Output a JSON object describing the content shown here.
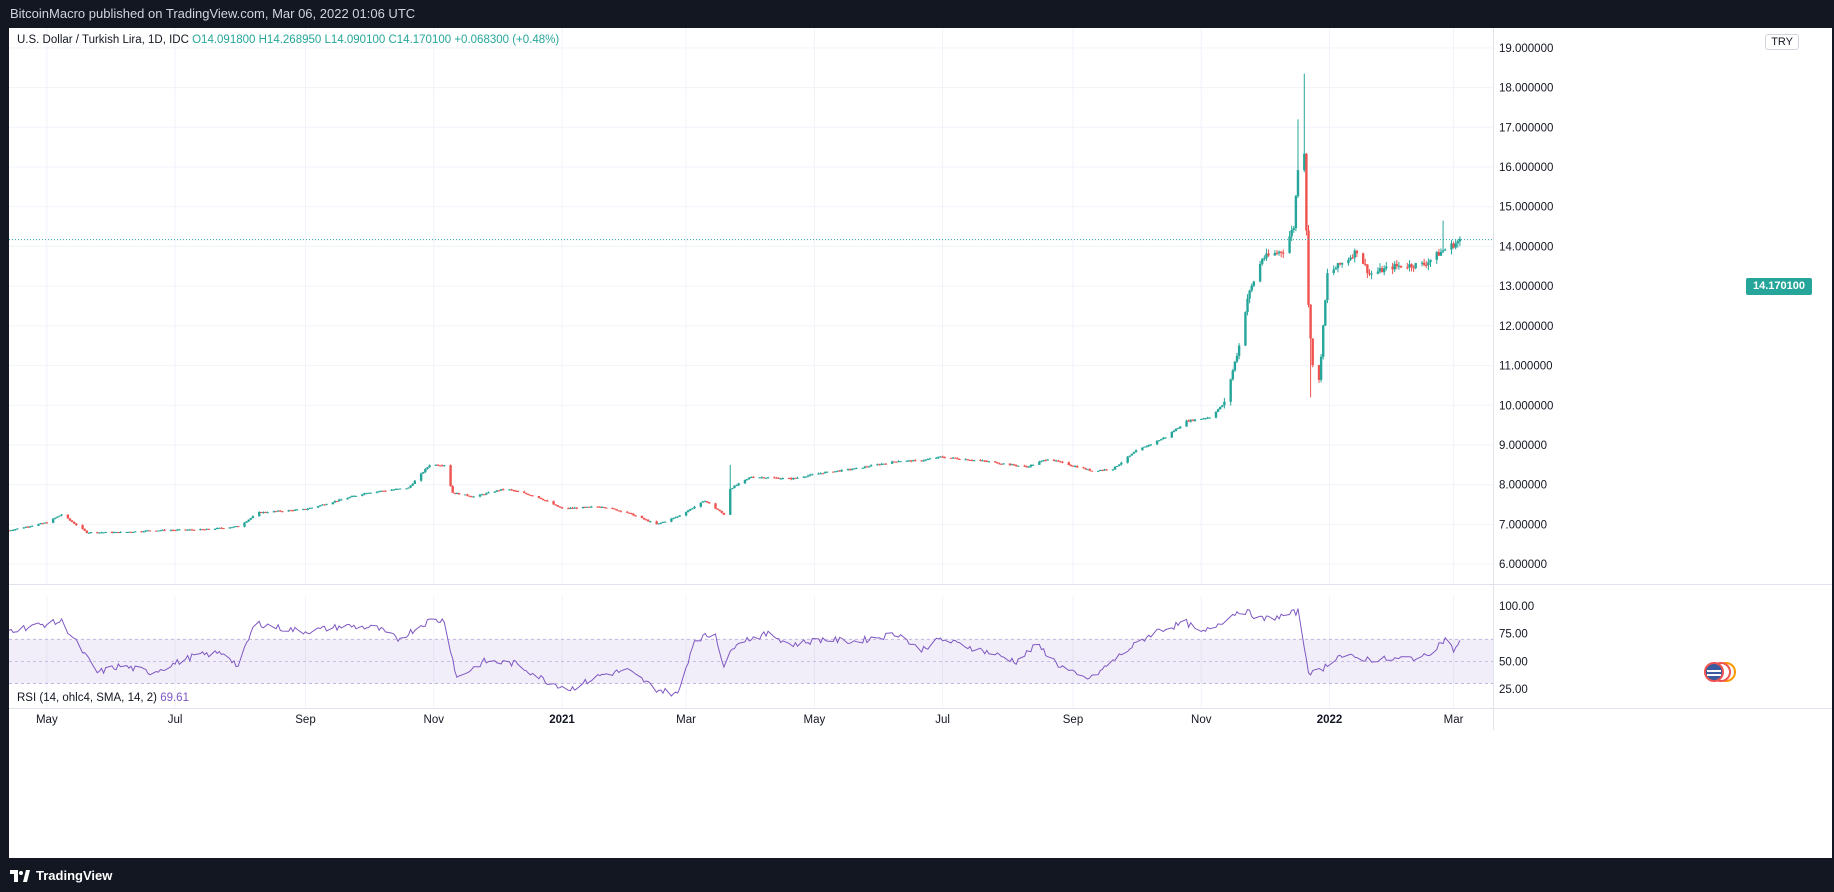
{
  "header": {
    "published": "BitcoinMacro published on TradingView.com, Mar 06, 2022 01:06 UTC"
  },
  "footer": {
    "brand": "TradingView"
  },
  "symbol": {
    "name": "U.S. Dollar / Turkish Lira, 1D, IDC",
    "open": "O14.091800",
    "high": "H14.268950",
    "low": "L14.090100",
    "close": "C14.170100",
    "change": "+0.068300 (+0.48%)",
    "currency": "TRY",
    "last_price_label": "14.170100"
  },
  "rsi": {
    "label": "RSI (14, ohlc4, SMA, 14, 2)",
    "value": "69.61"
  },
  "colors": {
    "up": "#26a69a",
    "down": "#ef5350",
    "rsi_line": "#7e57c2",
    "rsi_band": "#7e57c2"
  },
  "chart_data": [
    {
      "type": "candlestick",
      "title": "U.S. Dollar / Turkish Lira, 1D, IDC",
      "x_ticks": [
        "May",
        "Jul",
        "Sep",
        "Nov",
        "2021",
        "Mar",
        "May",
        "Jul",
        "Sep",
        "Nov",
        "2022",
        "Mar"
      ],
      "y_ticks": [
        "6.000000",
        "7.000000",
        "8.000000",
        "9.000000",
        "10.000000",
        "11.000000",
        "12.000000",
        "13.000000",
        "14.000000",
        "15.000000",
        "16.000000",
        "17.000000",
        "18.000000",
        "19.000000"
      ],
      "ylim": [
        5.5,
        19.5
      ],
      "last_price": 14.1701,
      "x_range": [
        "2020-04-13",
        "2022-03-05"
      ],
      "keypoints": [
        [
          "2020-04-13",
          6.85
        ],
        [
          "2020-05-01",
          7.05
        ],
        [
          "2020-05-08",
          7.25
        ],
        [
          "2020-05-20",
          6.8
        ],
        [
          "2020-06-05",
          6.8
        ],
        [
          "2020-06-20",
          6.85
        ],
        [
          "2020-07-15",
          6.87
        ],
        [
          "2020-07-31",
          6.95
        ],
        [
          "2020-08-10",
          7.3
        ],
        [
          "2020-09-01",
          7.38
        ],
        [
          "2020-09-30",
          7.8
        ],
        [
          "2020-10-20",
          7.92
        ],
        [
          "2020-10-30",
          8.5
        ],
        [
          "2020-11-06",
          8.5
        ],
        [
          "2020-11-10",
          7.8
        ],
        [
          "2020-11-20",
          7.7
        ],
        [
          "2020-12-05",
          7.9
        ],
        [
          "2020-12-20",
          7.7
        ],
        [
          "2021-01-01",
          7.4
        ],
        [
          "2021-01-20",
          7.45
        ],
        [
          "2021-02-01",
          7.3
        ],
        [
          "2021-02-15",
          7.0
        ],
        [
          "2021-02-25",
          7.2
        ],
        [
          "2021-03-10",
          7.6
        ],
        [
          "2021-03-19",
          7.25
        ],
        [
          "2021-03-22",
          7.9
        ],
        [
          "2021-04-01",
          8.2
        ],
        [
          "2021-04-20",
          8.15
        ],
        [
          "2021-05-05",
          8.3
        ],
        [
          "2021-05-20",
          8.4
        ],
        [
          "2021-06-10",
          8.6
        ],
        [
          "2021-06-20",
          8.6
        ],
        [
          "2021-06-30",
          8.7
        ],
        [
          "2021-07-20",
          8.6
        ],
        [
          "2021-08-10",
          8.45
        ],
        [
          "2021-08-20",
          8.65
        ],
        [
          "2021-09-10",
          8.35
        ],
        [
          "2021-09-20",
          8.4
        ],
        [
          "2021-10-01",
          8.85
        ],
        [
          "2021-10-15",
          9.2
        ],
        [
          "2021-10-25",
          9.6
        ],
        [
          "2021-11-05",
          9.7
        ],
        [
          "2021-11-12",
          10.05
        ],
        [
          "2021-11-19",
          11.5
        ],
        [
          "2021-11-23",
          12.7
        ],
        [
          "2021-11-30",
          13.7
        ],
        [
          "2021-12-10",
          13.9
        ],
        [
          "2021-12-15",
          14.5
        ],
        [
          "2021-12-17",
          16.0
        ],
        [
          "2021-12-20",
          16.4
        ],
        [
          "2021-12-22",
          12.5
        ],
        [
          "2021-12-24",
          11.0
        ],
        [
          "2021-12-27",
          10.6
        ],
        [
          "2021-12-31",
          13.3
        ],
        [
          "2022-01-10",
          13.7
        ],
        [
          "2022-01-14",
          13.9
        ],
        [
          "2022-01-20",
          13.3
        ],
        [
          "2022-02-01",
          13.5
        ],
        [
          "2022-02-15",
          13.55
        ],
        [
          "2022-02-24",
          13.9
        ],
        [
          "2022-03-05",
          14.17
        ]
      ]
    },
    {
      "type": "line",
      "title": "RSI (14, ohlc4, SMA, 14, 2)",
      "y_ticks": [
        "25.00",
        "50.00",
        "75.00",
        "100.00"
      ],
      "ylim": [
        8,
        109
      ],
      "band": [
        30,
        70
      ],
      "last_value": 69.61,
      "keypoints": [
        [
          "2020-04-13",
          78
        ],
        [
          "2020-05-08",
          86
        ],
        [
          "2020-05-25",
          40
        ],
        [
          "2020-06-05",
          46
        ],
        [
          "2020-06-20",
          40
        ],
        [
          "2020-07-10",
          55
        ],
        [
          "2020-07-25",
          58
        ],
        [
          "2020-07-31",
          45
        ],
        [
          "2020-08-08",
          85
        ],
        [
          "2020-08-20",
          80
        ],
        [
          "2020-09-01",
          77
        ],
        [
          "2020-09-20",
          82
        ],
        [
          "2020-10-05",
          80
        ],
        [
          "2020-10-15",
          70
        ],
        [
          "2020-10-30",
          87
        ],
        [
          "2020-11-06",
          87
        ],
        [
          "2020-11-12",
          35
        ],
        [
          "2020-11-25",
          50
        ],
        [
          "2020-12-10",
          48
        ],
        [
          "2020-12-25",
          32
        ],
        [
          "2021-01-05",
          25
        ],
        [
          "2021-01-20",
          38
        ],
        [
          "2021-02-01",
          42
        ],
        [
          "2021-02-15",
          25
        ],
        [
          "2021-02-25",
          20
        ],
        [
          "2021-03-05",
          70
        ],
        [
          "2021-03-15",
          75
        ],
        [
          "2021-03-19",
          45
        ],
        [
          "2021-03-25",
          68
        ],
        [
          "2021-04-10",
          75
        ],
        [
          "2021-04-20",
          65
        ],
        [
          "2021-05-05",
          70
        ],
        [
          "2021-05-20",
          68
        ],
        [
          "2021-06-10",
          75
        ],
        [
          "2021-06-20",
          60
        ],
        [
          "2021-06-30",
          70
        ],
        [
          "2021-07-10",
          65
        ],
        [
          "2021-07-25",
          57
        ],
        [
          "2021-08-05",
          50
        ],
        [
          "2021-08-15",
          65
        ],
        [
          "2021-08-25",
          47
        ],
        [
          "2021-09-05",
          35
        ],
        [
          "2021-09-10",
          35
        ],
        [
          "2021-09-25",
          58
        ],
        [
          "2021-10-10",
          77
        ],
        [
          "2021-10-25",
          85
        ],
        [
          "2021-11-01",
          75
        ],
        [
          "2021-11-10",
          85
        ],
        [
          "2021-11-20",
          97
        ],
        [
          "2021-11-30",
          88
        ],
        [
          "2021-12-10",
          91
        ],
        [
          "2021-12-17",
          95
        ],
        [
          "2021-12-22",
          42
        ],
        [
          "2021-12-25",
          38
        ],
        [
          "2022-01-05",
          55
        ],
        [
          "2022-01-20",
          52
        ],
        [
          "2022-02-01",
          52
        ],
        [
          "2022-02-15",
          54
        ],
        [
          "2022-02-25",
          70
        ],
        [
          "2022-03-01",
          60
        ],
        [
          "2022-03-05",
          69.61
        ]
      ]
    }
  ]
}
